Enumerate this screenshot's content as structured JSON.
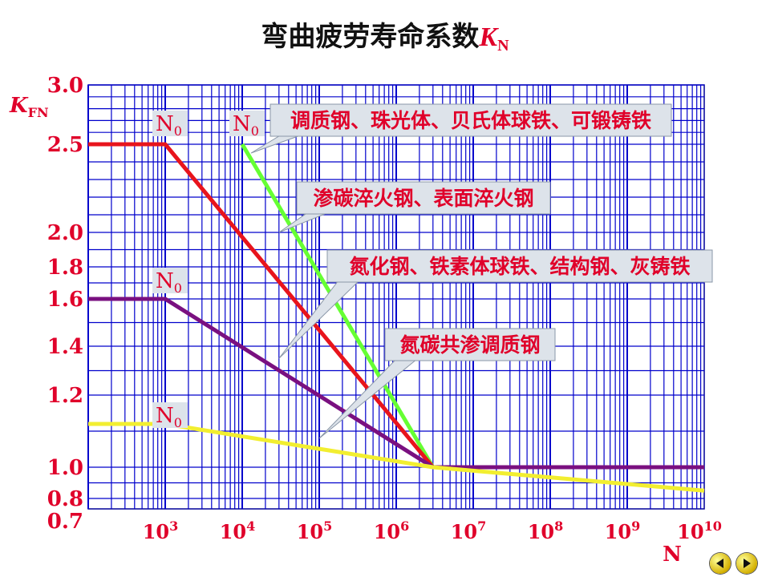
{
  "title": {
    "main": "弯曲疲劳寿命系数",
    "symbol": "K",
    "subscript": "N"
  },
  "chart_data": {
    "type": "line",
    "ylabel": {
      "symbol": "K",
      "subscript": "FN"
    },
    "xlabel": "N",
    "x_scale": "log",
    "xlim": [
      100,
      10000000000
    ],
    "y_ticks": [
      0.7,
      0.8,
      1.0,
      1.2,
      1.4,
      1.6,
      1.8,
      2.0,
      2.5,
      3.0
    ],
    "x_ticks": [
      {
        "base": "10",
        "exp": "3",
        "value": 1000
      },
      {
        "base": "10",
        "exp": "4",
        "value": 10000
      },
      {
        "base": "10",
        "exp": "5",
        "value": 100000
      },
      {
        "base": "10",
        "exp": "6",
        "value": 1000000
      },
      {
        "base": "10",
        "exp": "7",
        "value": 10000000
      },
      {
        "base": "10",
        "exp": "8",
        "value": 100000000
      },
      {
        "base": "10",
        "exp": "9",
        "value": 1000000000
      },
      {
        "base": "10",
        "exp": "10",
        "value": 10000000000
      }
    ],
    "grid": true,
    "series": [
      {
        "color": "#66ff33",
        "points": [
          [
            10000,
            2.5
          ],
          [
            3000000,
            1.0
          ]
        ]
      },
      {
        "color": "#e8141c",
        "points": [
          [
            100,
            2.5
          ],
          [
            1000,
            2.5
          ],
          [
            3000000,
            1.0
          ]
        ]
      },
      {
        "color": "#7a1080",
        "points": [
          [
            100,
            1.6
          ],
          [
            1000,
            1.6
          ],
          [
            3000000,
            1.0
          ],
          [
            10000000000,
            1.0
          ]
        ]
      },
      {
        "color": "#f2ee30",
        "points": [
          [
            100,
            1.12
          ],
          [
            1000,
            1.12
          ],
          [
            3000000,
            1.0
          ],
          [
            10000000000,
            0.85
          ]
        ]
      }
    ],
    "n0_labels": [
      {
        "text": "N",
        "sub": "0",
        "x": 1000,
        "y": 2.5
      },
      {
        "text": "N",
        "sub": "0",
        "x": 10000,
        "y": 2.5
      },
      {
        "text": "N",
        "sub": "0",
        "x": 1000,
        "y": 1.6
      },
      {
        "text": "N",
        "sub": "0",
        "x": 1000,
        "y": 1.12
      }
    ],
    "annotations": [
      {
        "text": "调质钢、珠光体、贝氏体球铁、可锻铸铁",
        "target": [
          13000,
          2.45
        ]
      },
      {
        "text": "渗碳淬火钢、表面淬火钢",
        "target": [
          30000,
          2.0
        ]
      },
      {
        "text": "氮化钢、铁素体球铁、结构钢、灰铸铁",
        "target": [
          30000,
          1.35
        ]
      },
      {
        "text": "氮碳共渗调质钢",
        "target": [
          100000,
          1.08
        ]
      }
    ]
  },
  "nav": {
    "prev_icon": "prev-arrow-icon",
    "next_icon": "next-arrow-icon"
  }
}
